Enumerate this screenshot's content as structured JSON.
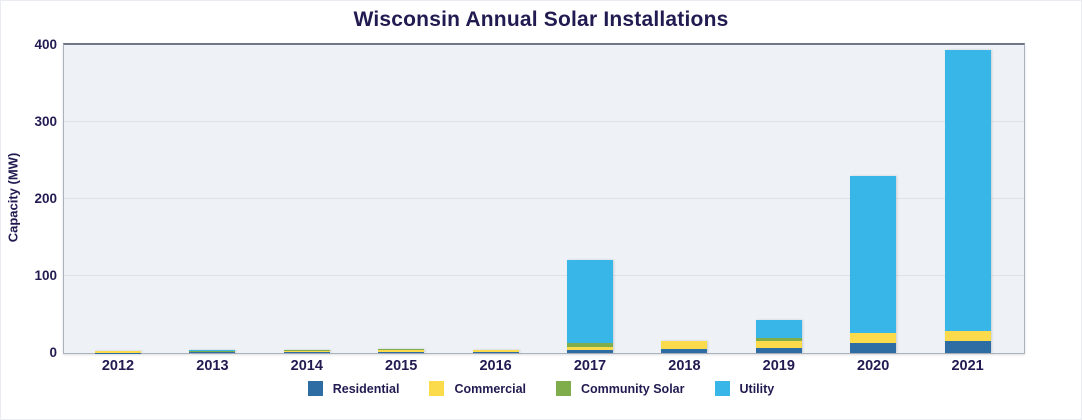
{
  "chart_data": {
    "type": "bar",
    "stacked": true,
    "title": "Wisconsin Annual Solar Installations",
    "ylabel": "Capacity (MW)",
    "xlabel": "",
    "ylim": [
      0,
      400
    ],
    "yticks": [
      0,
      100,
      200,
      300,
      400
    ],
    "grid": true,
    "legend_position": "bottom",
    "categories": [
      "2012",
      "2013",
      "2014",
      "2015",
      "2016",
      "2017",
      "2018",
      "2019",
      "2020",
      "2021"
    ],
    "series": [
      {
        "name": "Residential",
        "color": "#2d6da3",
        "values": [
          0.5,
          0.7,
          0.7,
          1.2,
          1.5,
          4,
          4.8,
          6,
          13,
          15.5
        ]
      },
      {
        "name": "Commercial",
        "color": "#fbdb4c",
        "values": [
          1.6,
          1.5,
          2.2,
          2.6,
          3.0,
          3.5,
          10.5,
          10,
          12.5,
          13.5
        ]
      },
      {
        "name": "Community Solar",
        "color": "#7fad4b",
        "values": [
          0,
          0.7,
          1.4,
          2.0,
          0,
          5,
          0,
          3.5,
          0,
          0
        ]
      },
      {
        "name": "Utility",
        "color": "#38b6e8",
        "values": [
          0,
          1.3,
          0,
          0,
          0,
          108,
          0,
          24,
          204,
          364
        ]
      }
    ]
  },
  "colors": {
    "text": "#221b51",
    "plot_background": "#eef2f6",
    "gridline": "#dde2e8",
    "plot_border": "#aab2bd",
    "background": "#ffffff"
  }
}
